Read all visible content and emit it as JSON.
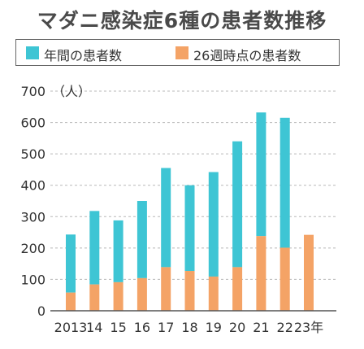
{
  "colors": {
    "annual": "#3ec5d4",
    "week26": "#f4a366"
  },
  "chart_data": {
    "type": "bar",
    "title": "マダニ感染症6種の患者数推移",
    "ylabel": "（人）",
    "xlabel": "",
    "ylim": [
      0,
      700
    ],
    "yticks": [
      0,
      100,
      200,
      300,
      400,
      500,
      600,
      700
    ],
    "categories": [
      "2013",
      "14",
      "15",
      "16",
      "17",
      "18",
      "19",
      "20",
      "21",
      "22",
      "23年"
    ],
    "series": [
      {
        "name": "年間の患者数",
        "values": [
          243,
          318,
          288,
          350,
          455,
          400,
          442,
          540,
          632,
          615,
          null
        ]
      },
      {
        "name": "26週時点の患者数",
        "values": [
          58,
          84,
          91,
          104,
          139,
          127,
          109,
          139,
          238,
          201,
          242
        ]
      }
    ],
    "grid": true,
    "legend_position": "top"
  }
}
